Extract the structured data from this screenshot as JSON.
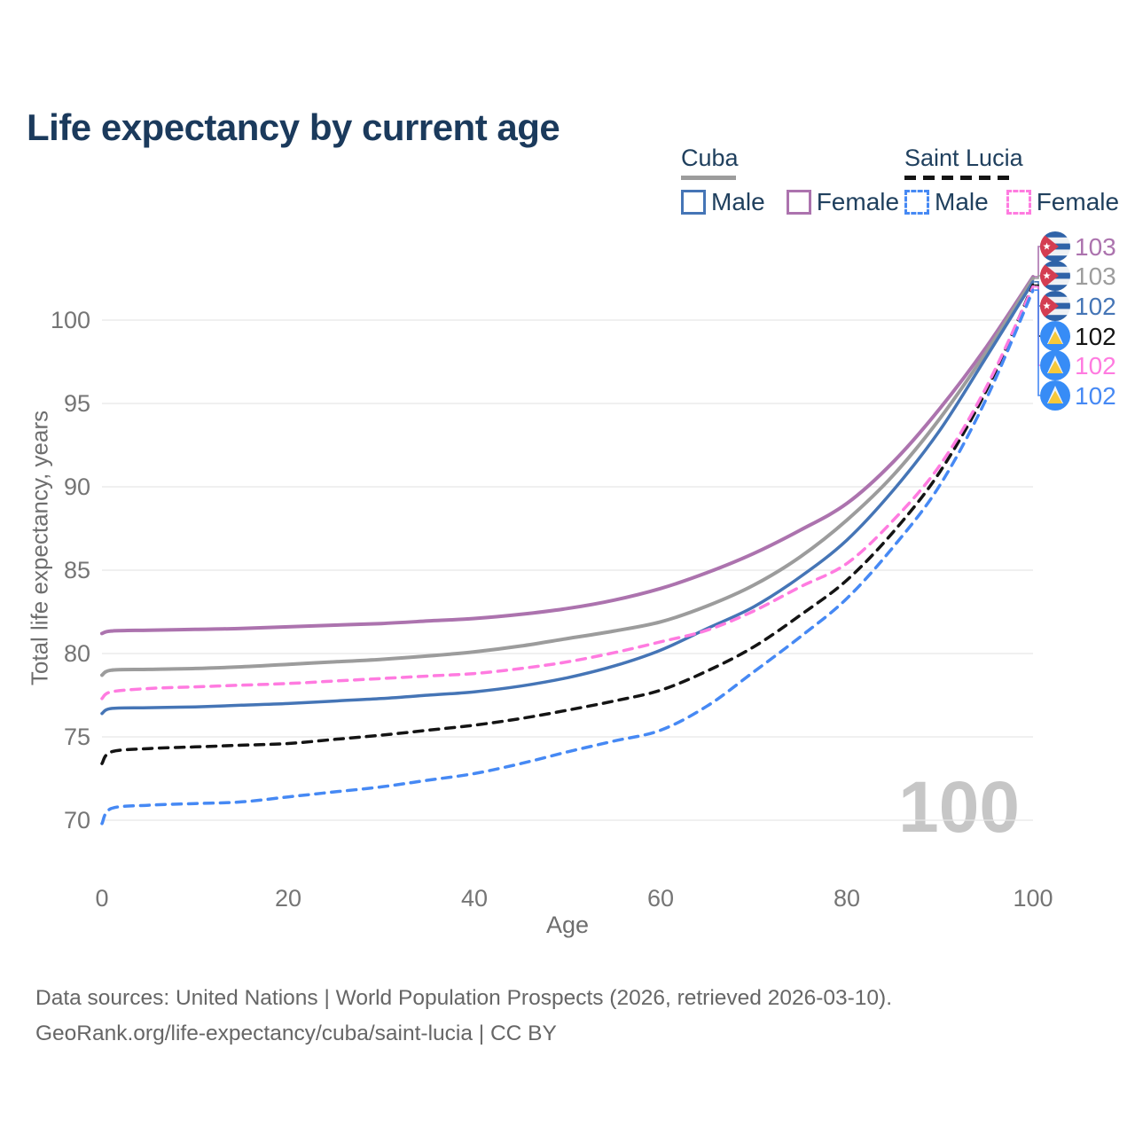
{
  "title": "Life expectancy by current age",
  "legend": {
    "groups": [
      {
        "country": "Cuba",
        "swatch_style": "solid-gray",
        "items": [
          {
            "label": "Male",
            "style": "solid",
            "color": "#4575b6"
          },
          {
            "label": "Female",
            "style": "solid",
            "color": "#ac73ae"
          }
        ]
      },
      {
        "country": "Saint Lucia",
        "swatch_style": "dashed-black",
        "items": [
          {
            "label": "Male",
            "style": "dashed",
            "color": "#4689f4"
          },
          {
            "label": "Female",
            "style": "dashed",
            "color": "#ff7be0"
          }
        ]
      }
    ]
  },
  "watermark": "100",
  "footer": {
    "line1": "Data sources: United Nations | World Population Prospects (2026, retrieved 2026-03-10).",
    "line2": "GeoRank.org/life-expectancy/cuba/saint-lucia | CC BY"
  },
  "chart_data": {
    "type": "line",
    "title": "Life expectancy by current age",
    "xlabel": "Age",
    "ylabel": "Total life expectancy, years",
    "x_ticks": [
      0,
      20,
      40,
      60,
      80,
      100
    ],
    "y_ticks": [
      70,
      75,
      80,
      85,
      90,
      95,
      100
    ],
    "xlim": [
      0,
      100
    ],
    "ylim": [
      69.5,
      103.5
    ],
    "grid": "horizontal",
    "legend_position": "top-right",
    "x": [
      0,
      1,
      5,
      10,
      15,
      20,
      25,
      30,
      35,
      40,
      45,
      50,
      55,
      60,
      65,
      70,
      75,
      80,
      85,
      90,
      95,
      100
    ],
    "series": [
      {
        "id": "cuba-female",
        "country": "Cuba",
        "sex": "Female",
        "style": "solid",
        "color": "#ac73ae",
        "width": 4,
        "flag": "cuba",
        "end_label": "103",
        "slot": 0,
        "values": [
          81.2,
          81.35,
          81.4,
          81.45,
          81.5,
          81.6,
          81.7,
          81.8,
          81.95,
          82.1,
          82.35,
          82.7,
          83.2,
          83.9,
          84.85,
          86.0,
          87.4,
          89.0,
          91.5,
          94.7,
          98.4,
          102.6
        ]
      },
      {
        "id": "cuba-both",
        "country": "Cuba",
        "sex": "Both sexes",
        "style": "solid",
        "color": "#9c9c9c",
        "width": 4,
        "flag": "cuba",
        "end_label": "103",
        "slot": 1,
        "values": [
          78.7,
          79.0,
          79.05,
          79.1,
          79.2,
          79.35,
          79.5,
          79.65,
          79.85,
          80.1,
          80.45,
          80.9,
          81.35,
          81.9,
          82.85,
          84.1,
          85.8,
          88.0,
          90.7,
          94.1,
          98.1,
          102.5
        ]
      },
      {
        "id": "cuba-male",
        "country": "Cuba",
        "sex": "Male",
        "style": "solid",
        "color": "#4575b6",
        "width": 3.5,
        "flag": "cuba",
        "end_label": "102",
        "slot": 2,
        "values": [
          76.4,
          76.7,
          76.75,
          76.8,
          76.9,
          77.0,
          77.15,
          77.3,
          77.5,
          77.7,
          78.05,
          78.55,
          79.25,
          80.2,
          81.5,
          82.8,
          84.6,
          86.8,
          89.8,
          93.4,
          97.8,
          102.3
        ]
      },
      {
        "id": "saint-lucia-both",
        "country": "Saint Lucia",
        "sex": "Both sexes",
        "style": "dashed",
        "color": "#141414",
        "width": 3.5,
        "flag": "saint-lucia",
        "end_label": "102",
        "slot": 3,
        "values": [
          73.4,
          74.1,
          74.3,
          74.4,
          74.5,
          74.6,
          74.85,
          75.1,
          75.4,
          75.7,
          76.1,
          76.6,
          77.15,
          77.8,
          78.95,
          80.4,
          82.3,
          84.4,
          87.3,
          90.9,
          95.8,
          102.1
        ]
      },
      {
        "id": "saint-lucia-female",
        "country": "Saint Lucia",
        "sex": "Female",
        "style": "dashed",
        "color": "#ff7be0",
        "width": 3.5,
        "flag": "saint-lucia",
        "end_label": "102",
        "slot": 4,
        "values": [
          77.3,
          77.7,
          77.9,
          78.0,
          78.1,
          78.2,
          78.35,
          78.5,
          78.65,
          78.8,
          79.1,
          79.5,
          80.05,
          80.7,
          81.4,
          82.55,
          84.0,
          85.4,
          88.0,
          91.3,
          96.0,
          102.0
        ]
      },
      {
        "id": "saint-lucia-male",
        "country": "Saint Lucia",
        "sex": "Male",
        "style": "dashed",
        "color": "#4689f4",
        "width": 3.5,
        "flag": "saint-lucia",
        "end_label": "102",
        "slot": 5,
        "values": [
          69.8,
          70.7,
          70.9,
          71.0,
          71.1,
          71.4,
          71.7,
          72.0,
          72.4,
          72.8,
          73.4,
          74.1,
          74.75,
          75.4,
          76.85,
          78.9,
          81.0,
          83.3,
          86.4,
          90.1,
          95.3,
          101.8
        ]
      }
    ]
  },
  "colors": {
    "title": "#1b3a5c",
    "gridline": "#e7e7e7",
    "tick_label": "#757575",
    "watermark": "#c6c6c6"
  }
}
